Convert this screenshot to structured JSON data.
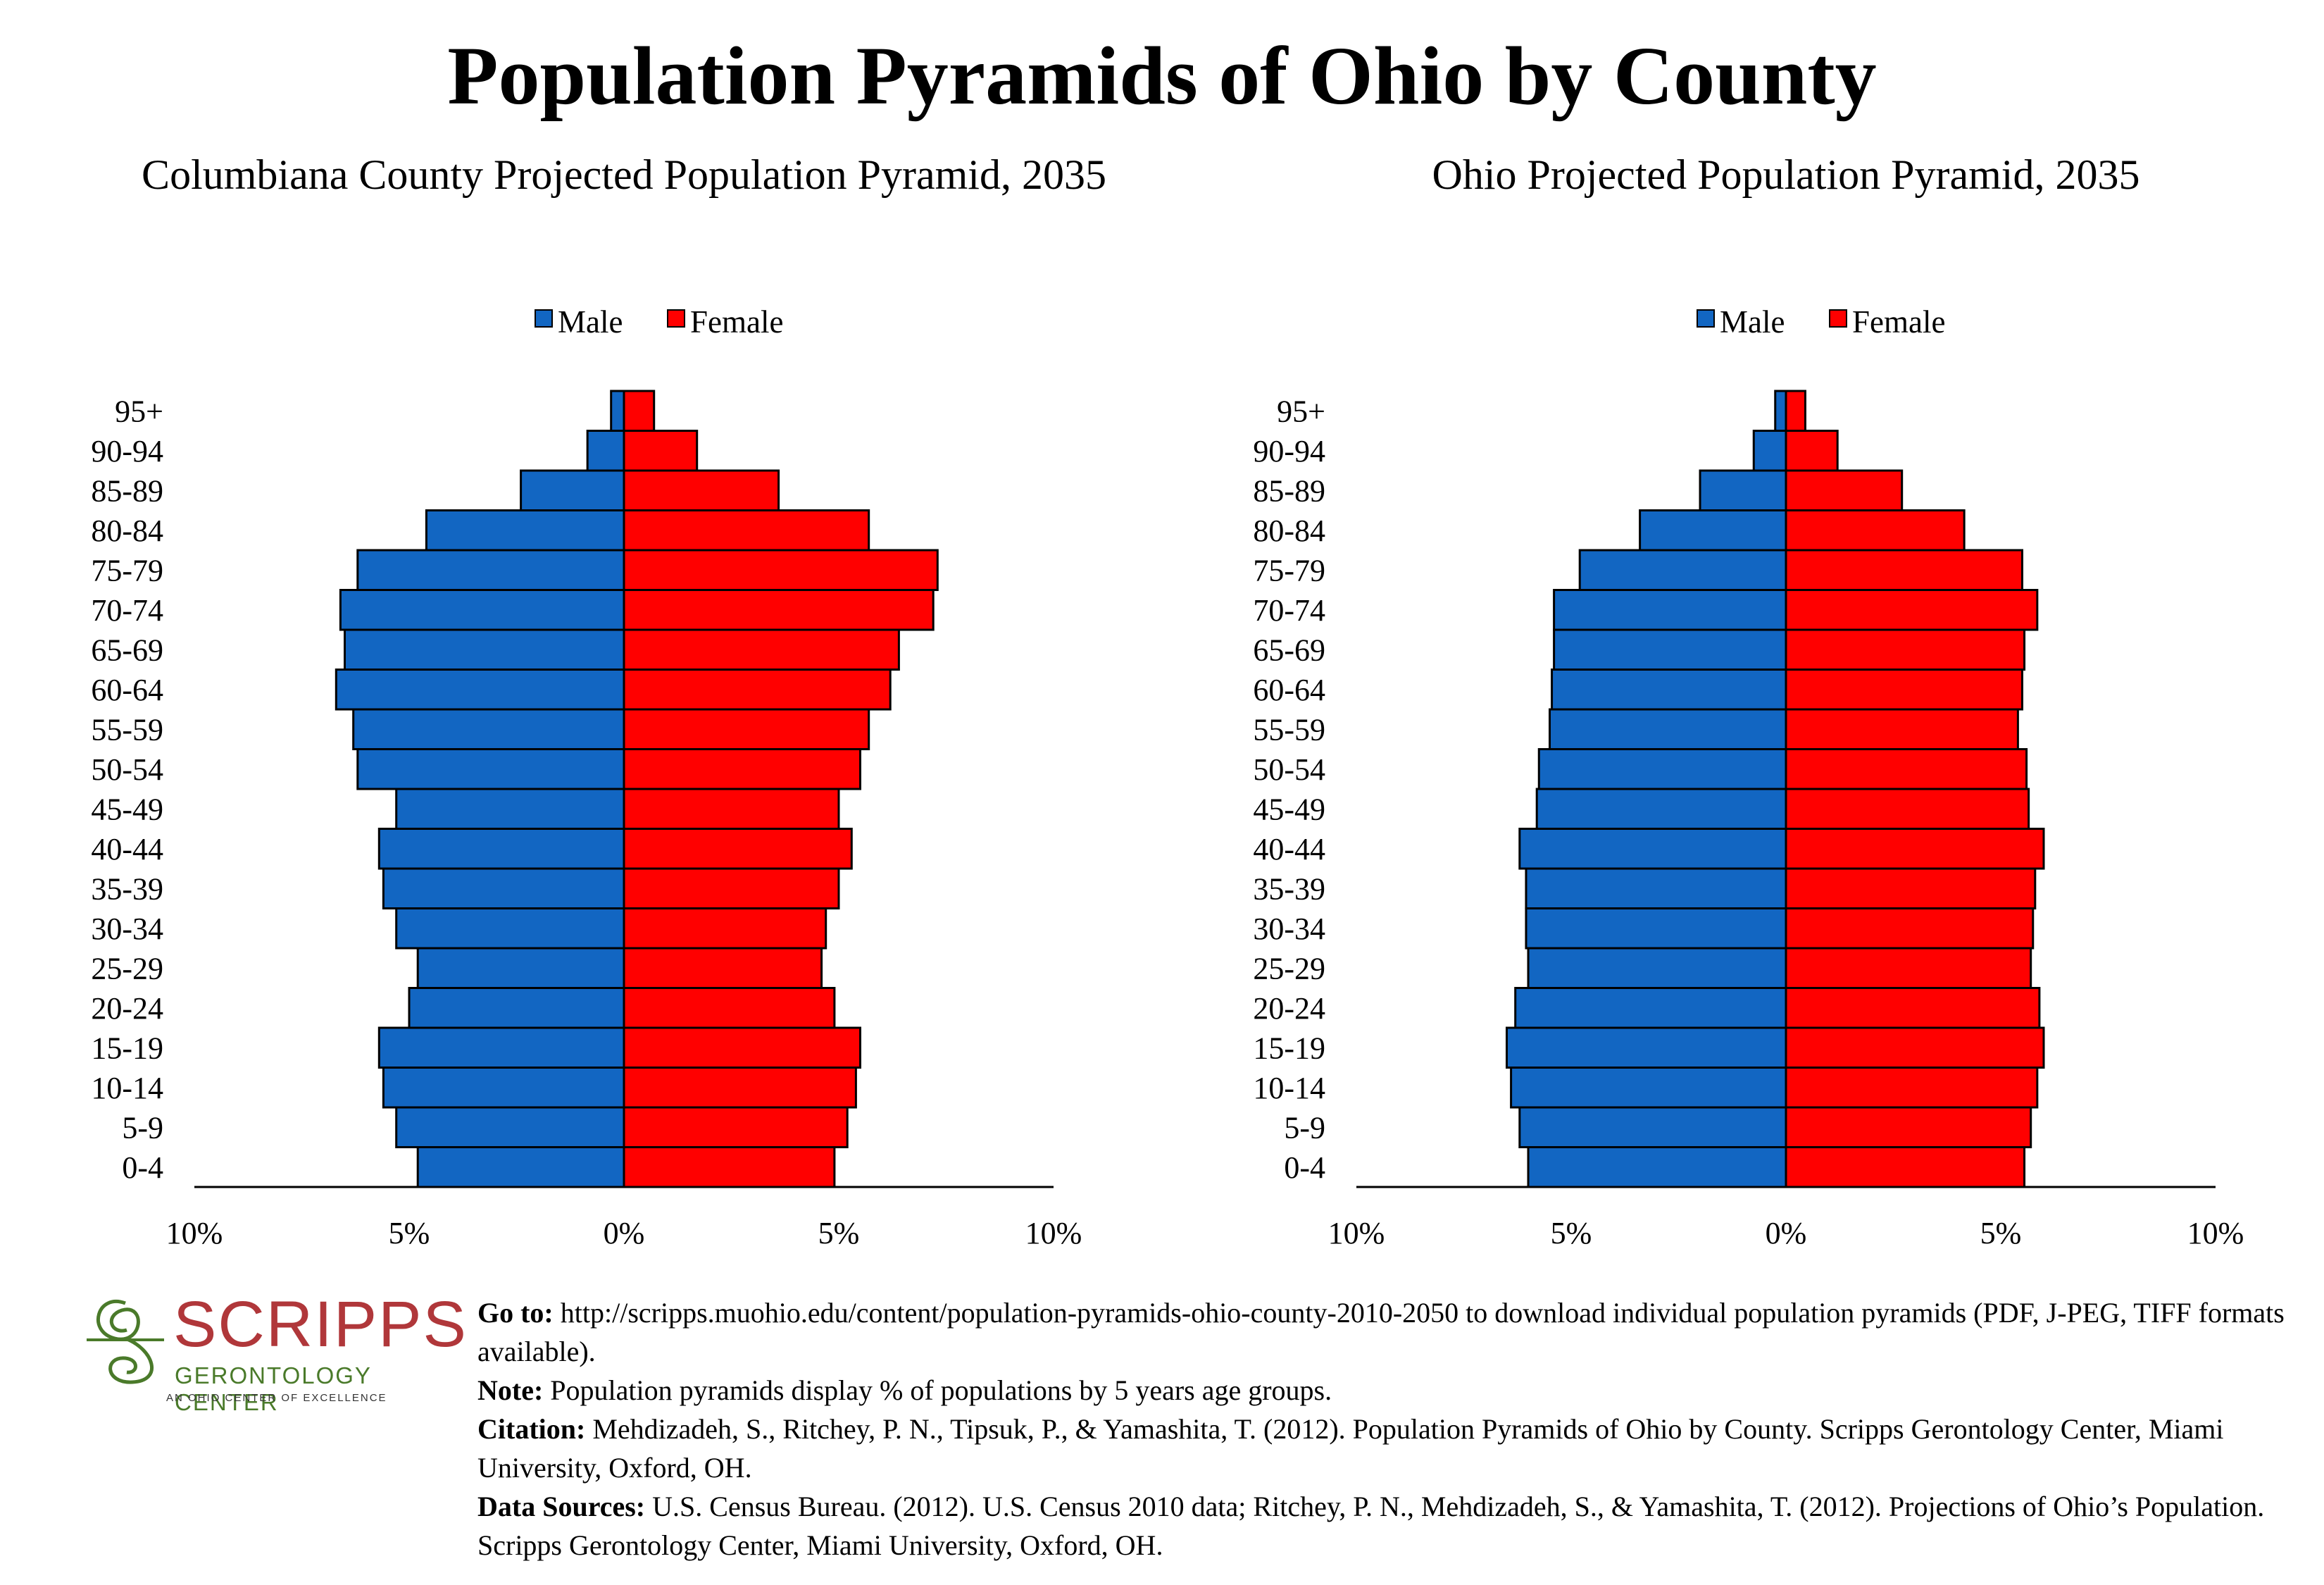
{
  "page_title": "Population Pyramids of Ohio by County",
  "legend": {
    "male": "Male",
    "female": "Female"
  },
  "colors": {
    "male": "#1266c2",
    "female": "#ff0000",
    "border": "#000000"
  },
  "chart_data": [
    {
      "type": "bar",
      "orientation": "horizontal-pyramid",
      "title": "Columbiana County Projected Population Pyramid, 2035",
      "categories": [
        "0-4",
        "5-9",
        "10-14",
        "15-19",
        "20-24",
        "25-29",
        "30-34",
        "35-39",
        "40-44",
        "45-49",
        "50-54",
        "55-59",
        "60-64",
        "65-69",
        "70-74",
        "75-79",
        "80-84",
        "85-89",
        "90-94",
        "95+"
      ],
      "series": [
        {
          "name": "Male",
          "values": [
            4.8,
            5.3,
            5.6,
            5.7,
            5.0,
            4.8,
            5.3,
            5.6,
            5.7,
            5.3,
            6.2,
            6.3,
            6.7,
            6.5,
            6.6,
            6.2,
            4.6,
            2.4,
            0.85,
            0.3
          ]
        },
        {
          "name": "Female",
          "values": [
            4.9,
            5.2,
            5.4,
            5.5,
            4.9,
            4.6,
            4.7,
            5.0,
            5.3,
            5.0,
            5.5,
            5.7,
            6.2,
            6.4,
            7.2,
            7.3,
            5.7,
            3.6,
            1.7,
            0.7
          ]
        }
      ],
      "xaxis": {
        "ticks": [
          "10%",
          "5%",
          "0%",
          "5%",
          "10%"
        ],
        "range": [
          -10,
          10
        ]
      },
      "grid": false,
      "legend_position": "top-center"
    },
    {
      "type": "bar",
      "orientation": "horizontal-pyramid",
      "title": "Ohio Projected Population Pyramid, 2035",
      "categories": [
        "0-4",
        "5-9",
        "10-14",
        "15-19",
        "20-24",
        "25-29",
        "30-34",
        "35-39",
        "40-44",
        "45-49",
        "50-54",
        "55-59",
        "60-64",
        "65-69",
        "70-74",
        "75-79",
        "80-84",
        "85-89",
        "90-94",
        "95+"
      ],
      "series": [
        {
          "name": "Male",
          "values": [
            6.0,
            6.2,
            6.4,
            6.5,
            6.3,
            6.0,
            6.05,
            6.05,
            6.2,
            5.8,
            5.75,
            5.5,
            5.45,
            5.4,
            5.4,
            4.8,
            3.4,
            2.0,
            0.75,
            0.25
          ]
        },
        {
          "name": "Female",
          "values": [
            5.55,
            5.7,
            5.85,
            6.0,
            5.9,
            5.7,
            5.75,
            5.8,
            6.0,
            5.65,
            5.6,
            5.4,
            5.5,
            5.55,
            5.85,
            5.5,
            4.15,
            2.7,
            1.2,
            0.45
          ]
        }
      ],
      "xaxis": {
        "ticks": [
          "10%",
          "5%",
          "0%",
          "5%",
          "10%"
        ],
        "range": [
          -10,
          10
        ]
      },
      "grid": false,
      "legend_position": "top-center"
    }
  ],
  "logo": {
    "name": "SCRIPPS",
    "subtitle": "GERONTOLOGY CENTER",
    "tagline": "AN OHIO CENTER OF EXCELLENCE",
    "color_name": "#b0373a",
    "color_sub": "#4a7a2a"
  },
  "notes": {
    "goto_label": "Go to:",
    "goto_text": " http://scripps.muohio.edu/content/population-pyramids-ohio-county-2010-2050 to download individual population pyramids (PDF, J-PEG, TIFF formats available).",
    "note_label": "Note:",
    "note_text": " Population pyramids display % of populations by 5 years age groups.",
    "citation_label": "Citation:",
    "citation_text": " Mehdizadeh, S., Ritchey, P. N., Tipsuk, P., & Yamashita, T. (2012). Population Pyramids of Ohio by County. Scripps Gerontology Center, Miami University, Oxford, OH.",
    "sources_label": "Data Sources:",
    "sources_text": " U.S. Census Bureau. (2012). U.S. Census 2010 data; Ritchey, P. N., Mehdizadeh, S., & Yamashita, T. (2012). Projections of Ohio’s Population. Scripps Gerontology Center, Miami University, Oxford, OH."
  }
}
